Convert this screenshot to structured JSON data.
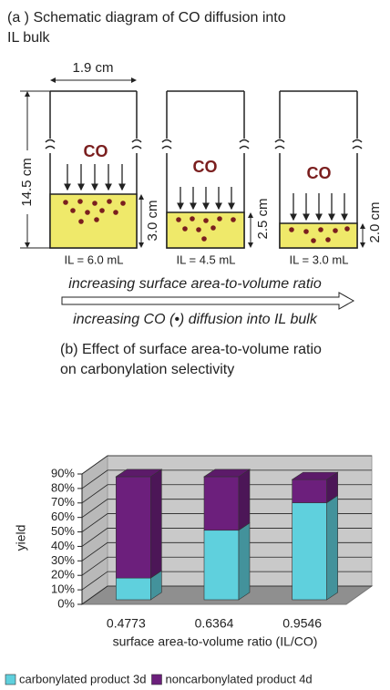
{
  "diagram": {
    "title": [
      "(a ) Schematic diagram of CO diffusion into",
      "IL bulk"
    ],
    "beaker_width": "1.9 cm",
    "beaker_height": "14.5 cm",
    "gas": [
      "CO",
      "CO",
      "CO"
    ],
    "depths": [
      "3.0 cm",
      "2.5 cm",
      "2.0 cm"
    ],
    "volumes": [
      "IL = 6.0 mL",
      "IL = 4.5 mL",
      "IL = 3.0 mL"
    ],
    "arrow_top": "increasing surface area-to-volume ratio",
    "arrow_bottom": "increasing CO (•) diffusion into IL bulk"
  },
  "chart_data": {
    "type": "bar3d_stacked",
    "title": [
      "(b) Effect of surface area-to-volume ratio",
      "on carbonylation selectivity"
    ],
    "categories": [
      "0.4773",
      "0.6364",
      "0.9546"
    ],
    "series": [
      {
        "name": "carbonylated product 3d",
        "color": "#5fd0dd",
        "values": [
          15,
          48,
          67
        ]
      },
      {
        "name": "noncarbonylated product 4d",
        "color": "#6c1f7c",
        "values": [
          70,
          37,
          16
        ]
      }
    ],
    "ylim": [
      0,
      90
    ],
    "yticks": [
      {
        "value": 0,
        "label": "0%"
      },
      {
        "value": 10,
        "label": "10%"
      },
      {
        "value": 20,
        "label": "20%"
      },
      {
        "value": 30,
        "label": "30%"
      },
      {
        "value": 40,
        "label": "40%"
      },
      {
        "value": 50,
        "label": "50%"
      },
      {
        "value": 60,
        "label": "60%"
      },
      {
        "value": 70,
        "label": "70%"
      },
      {
        "value": 80,
        "label": "80%"
      },
      {
        "value": 90,
        "label": "90%"
      }
    ],
    "ylabel": "yield",
    "xlabel": "surface area-to-volume ratio (IL/CO)",
    "grid": true
  }
}
